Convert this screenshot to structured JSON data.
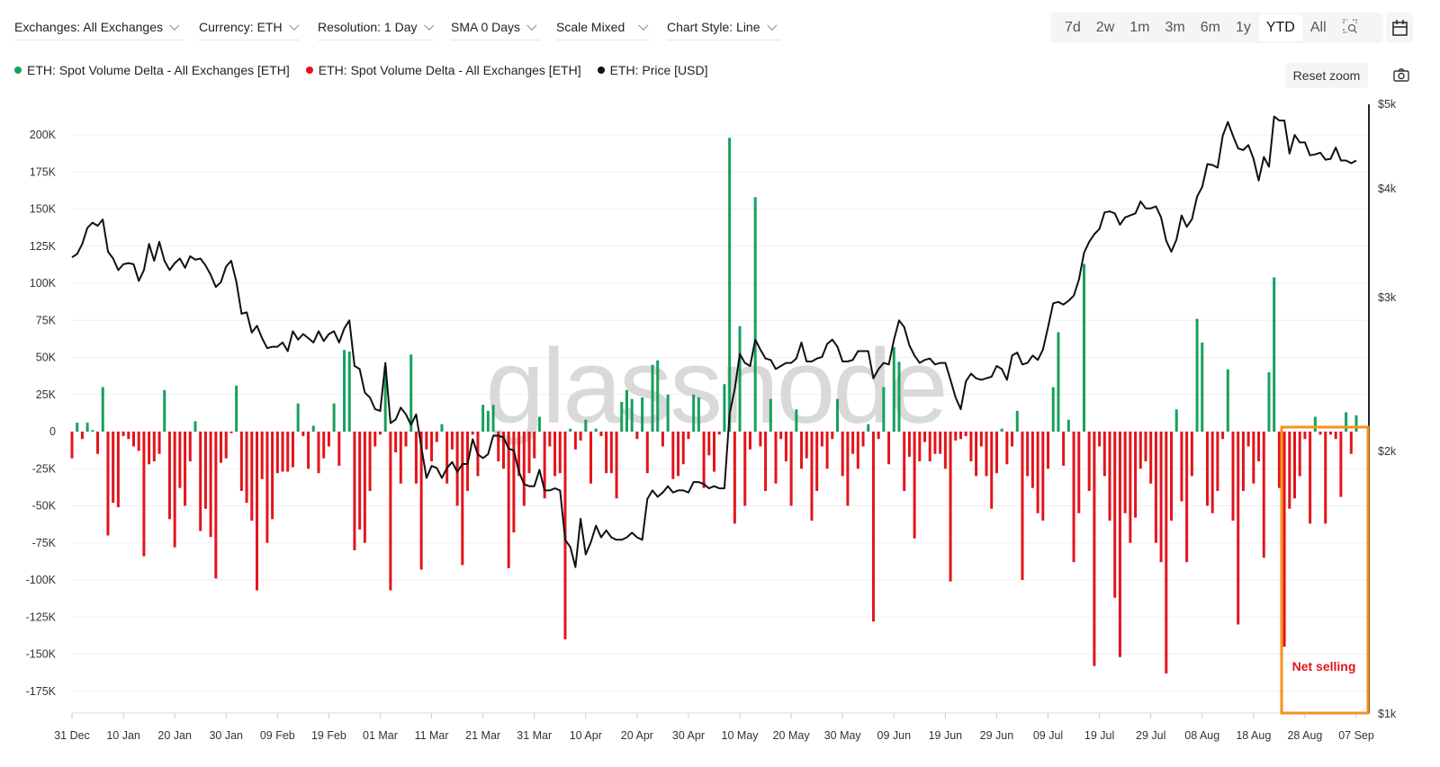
{
  "toolbar": {
    "dropdowns": [
      {
        "label": "Exchanges: All Exchanges"
      },
      {
        "label": "Currency: ETH"
      },
      {
        "label": "Resolution: 1 Day"
      },
      {
        "label": "SMA 0 Days"
      },
      {
        "label": "Scale Mixed"
      },
      {
        "label": "Chart Style: Line"
      }
    ],
    "ranges": [
      "7d",
      "2w",
      "1m",
      "3m",
      "6m",
      "1y",
      "YTD",
      "All"
    ],
    "selected_range": "YTD",
    "zoom_icon": "zoom-select-icon",
    "calendar_icon": "calendar-icon",
    "reset_zoom": "Reset zoom",
    "camera_icon": "camera-icon"
  },
  "legend": [
    {
      "label": "ETH: Spot Volume Delta - All Exchanges [ETH]",
      "color": "#16a05d"
    },
    {
      "label": "ETH: Spot Volume Delta - All Exchanges [ETH]",
      "color": "#e3141b"
    },
    {
      "label": "ETH: Price [USD]",
      "color": "#111111"
    }
  ],
  "watermark": "glassnode",
  "chart_data": {
    "type": "bar+line",
    "resolution": "1 Day",
    "first_date": "31 Dec",
    "last_date": "07 Sep",
    "x_tick_labels": [
      "31 Dec",
      "10 Jan",
      "20 Jan",
      "30 Jan",
      "09 Feb",
      "19 Feb",
      "01 Mar",
      "11 Mar",
      "21 Mar",
      "31 Mar",
      "10 Apr",
      "20 Apr",
      "30 Apr",
      "10 May",
      "20 May",
      "30 May",
      "09 Jun",
      "19 Jun",
      "29 Jun",
      "09 Jul",
      "19 Jul",
      "29 Jul",
      "08 Aug",
      "18 Aug",
      "28 Aug",
      "07 Sep"
    ],
    "left_axis": {
      "ticks": [
        200,
        175,
        150,
        125,
        100,
        75,
        50,
        25,
        0,
        -25,
        -50,
        -75,
        -100,
        -125,
        -150,
        -175
      ],
      "tick_labels": [
        "200K",
        "175K",
        "150K",
        "125K",
        "100K",
        "75K",
        "50K",
        "25K",
        "0",
        "-25K",
        "-50K",
        "-75K",
        "-100K",
        "-125K",
        "-150K",
        "-175K"
      ],
      "ylim_k": [
        -190,
        220
      ]
    },
    "right_axis": {
      "scale": "log",
      "ticks": [
        5000,
        4000,
        3000,
        2000,
        1000
      ],
      "tick_labels": [
        "$5k",
        "$4k",
        "$3k",
        "$2k",
        "$1k"
      ],
      "ylim": [
        1000,
        5000
      ]
    },
    "grid": "horizontal",
    "positive_color": "#16a05d",
    "negative_color": "#e3141b",
    "price_color": "#111111",
    "spot_volume_delta_k": [
      -18,
      6,
      -5,
      6,
      1,
      -15,
      30,
      -70,
      -48,
      -51,
      -3,
      -5,
      -10,
      -13,
      -84,
      -22,
      -20,
      -15,
      28,
      -59,
      -78,
      -38,
      -50,
      -20,
      7,
      -67,
      -52,
      -71,
      -99,
      -21,
      -18,
      -1,
      31,
      -40,
      -48,
      -60,
      -107,
      -32,
      -75,
      -59,
      -28,
      -27,
      -27,
      -24,
      19,
      -3,
      -25,
      4,
      -28,
      -18,
      -10,
      19,
      -23,
      55,
      54,
      -80,
      -66,
      -75,
      -40,
      -10,
      -2,
      44,
      -107,
      -14,
      -35,
      -10,
      52,
      -35,
      -93,
      -12,
      -20,
      -7,
      5,
      -35,
      -12,
      -50,
      -90,
      -40,
      -2,
      -30,
      18,
      14,
      18,
      -20,
      -25,
      -92,
      -68,
      -30,
      -50,
      -28,
      -18,
      10,
      -45,
      -10,
      -30,
      -28,
      -140,
      2,
      -12,
      -6,
      8,
      -35,
      2,
      -3,
      -28,
      -28,
      -45,
      20,
      28,
      22,
      -5,
      23,
      -28,
      45,
      48,
      -10,
      25,
      -32,
      -30,
      -22,
      -5,
      25,
      23,
      -38,
      -16,
      -27,
      -2,
      32,
      198,
      -62,
      71,
      -50,
      -12,
      158,
      -10,
      -40,
      22,
      -35,
      -5,
      -20,
      -50,
      15,
      -25,
      -18,
      -60,
      -40,
      -10,
      -25,
      -5,
      22,
      -30,
      -50,
      -15,
      -25,
      -10,
      5,
      -128,
      -5,
      30,
      -22,
      57,
      47,
      -40,
      -17,
      -72,
      -20,
      -7,
      -20,
      -15,
      -15,
      -25,
      -101,
      -6,
      -5,
      -3,
      -20,
      -30,
      -10,
      -30,
      -52,
      -28,
      2,
      -22,
      -10,
      14,
      -100,
      -30,
      -38,
      -55,
      -60,
      -25,
      30,
      67,
      -23,
      8,
      -88,
      -55,
      113,
      -40,
      -158,
      -10,
      -30,
      -60,
      -112,
      -152,
      -55,
      -75,
      -58,
      -25,
      -20,
      -35,
      -75,
      -88,
      -163,
      -60,
      15,
      -47,
      -88,
      -30,
      76,
      60,
      -50,
      -55,
      -40,
      -5,
      42,
      -60,
      -130,
      -40,
      -10,
      -35,
      -20,
      -85,
      40,
      104,
      -38,
      -145,
      -52,
      -45,
      -30,
      -5,
      -62,
      10,
      -2,
      -62,
      -2,
      -5,
      -44,
      13,
      -15,
      11
    ],
    "price_usd": [
      3330,
      3360,
      3450,
      3600,
      3650,
      3620,
      3680,
      3380,
      3320,
      3220,
      3270,
      3280,
      3270,
      3130,
      3220,
      3450,
      3300,
      3470,
      3300,
      3220,
      3280,
      3320,
      3240,
      3340,
      3310,
      3320,
      3260,
      3180,
      3080,
      3120,
      3250,
      3300,
      3120,
      2870,
      2880,
      2730,
      2780,
      2690,
      2620,
      2630,
      2630,
      2660,
      2600,
      2740,
      2680,
      2720,
      2690,
      2660,
      2740,
      2670,
      2720,
      2740,
      2660,
      2760,
      2820,
      2500,
      2480,
      2330,
      2300,
      2230,
      2220,
      2520,
      2150,
      2170,
      2240,
      2200,
      2140,
      2200,
      2020,
      1860,
      1920,
      1910,
      1860,
      1910,
      1940,
      1890,
      1930,
      1930,
      2060,
      1980,
      1960,
      1980,
      2080,
      2080,
      2070,
      2010,
      2000,
      1890,
      1830,
      1820,
      1820,
      1900,
      1800,
      1800,
      1810,
      1800,
      1580,
      1550,
      1470,
      1670,
      1520,
      1570,
      1640,
      1590,
      1620,
      1590,
      1580,
      1580,
      1590,
      1610,
      1590,
      1580,
      1760,
      1800,
      1770,
      1790,
      1820,
      1790,
      1800,
      1800,
      1790,
      1840,
      1840,
      1830,
      1810,
      1820,
      1810,
      1810,
      2200,
      2350,
      2580,
      2520,
      2500,
      2680,
      2610,
      2550,
      2540,
      2480,
      2500,
      2520,
      2520,
      2550,
      2660,
      2530,
      2530,
      2550,
      2560,
      2650,
      2680,
      2630,
      2530,
      2530,
      2540,
      2600,
      2600,
      2600,
      2420,
      2480,
      2520,
      2510,
      2680,
      2820,
      2770,
      2640,
      2570,
      2520,
      2540,
      2550,
      2510,
      2520,
      2520,
      2410,
      2300,
      2230,
      2400,
      2450,
      2420,
      2410,
      2420,
      2430,
      2500,
      2480,
      2410,
      2570,
      2590,
      2510,
      2520,
      2570,
      2540,
      2610,
      2770,
      2950,
      2960,
      2940,
      2970,
      3010,
      3140,
      3370,
      3470,
      3540,
      3590,
      3750,
      3760,
      3740,
      3630,
      3700,
      3720,
      3740,
      3860,
      3790,
      3790,
      3810,
      3700,
      3480,
      3380,
      3490,
      3720,
      3610,
      3680,
      3910,
      4010,
      4260,
      4250,
      4220,
      4590,
      4760,
      4590,
      4440,
      4420,
      4480,
      4320,
      4080,
      4340,
      4230,
      4830,
      4780,
      4780,
      4380,
      4600,
      4510,
      4510,
      4360,
      4370,
      4390,
      4310,
      4320,
      4450,
      4300,
      4300,
      4270,
      4300
    ],
    "annotation": {
      "text": "Net selling",
      "box_color": "#f5921e",
      "text_color": "#e3141b",
      "from_date": "26 Aug",
      "to_date": "09 Sep"
    }
  }
}
